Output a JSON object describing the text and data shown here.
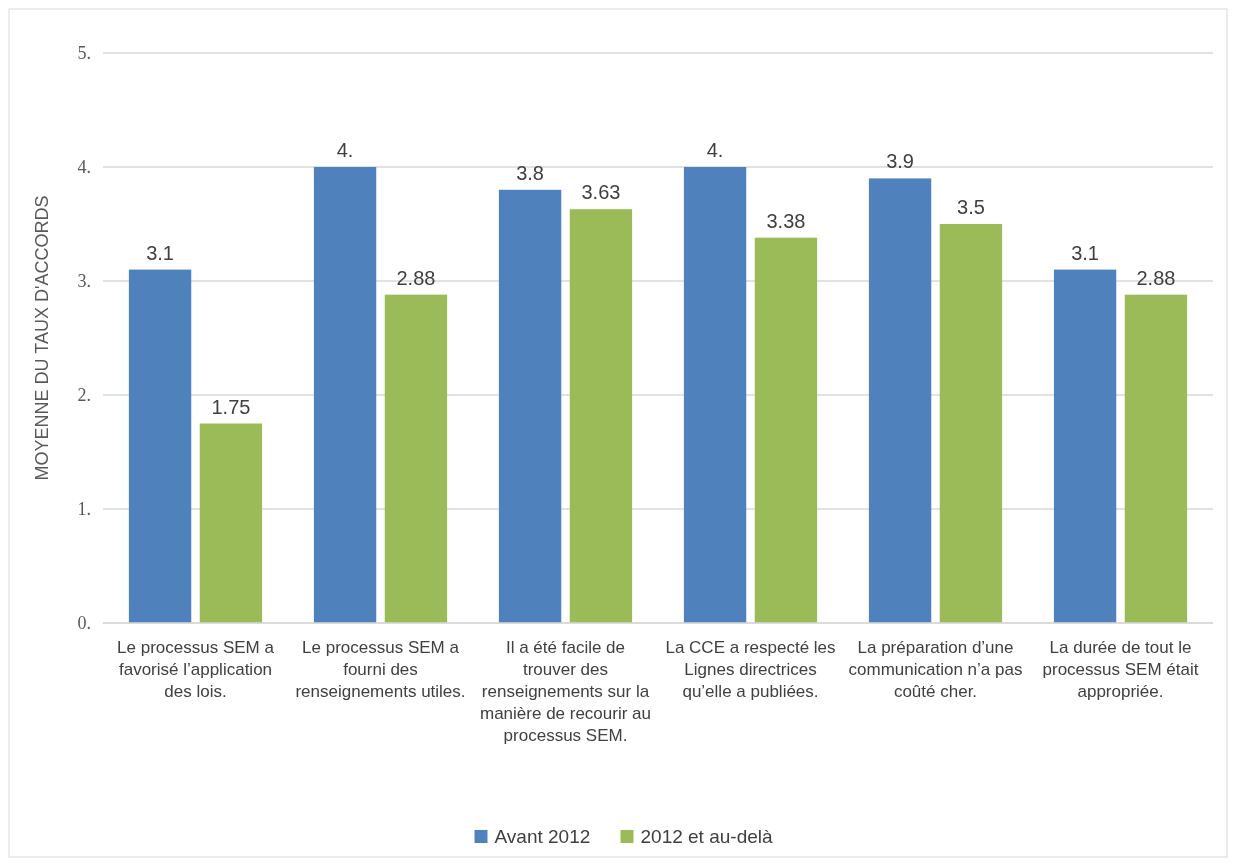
{
  "chart_data": {
    "type": "bar",
    "ylabel": "MOYENNE DU TAUX D'ACCORDS",
    "categories": [
      "Le processus SEM a favorisé l’application des lois.",
      "Le processus SEM a fourni des renseignements utiles.",
      "Il a été facile de trouver des renseignements sur la manière de recourir au processus SEM.",
      "La CCE a respecté les Lignes directrices qu’elle a publiées.",
      "La préparation d’une communication n’a pas coûté cher.",
      "La durée de tout le processus SEM était appropriée."
    ],
    "series": [
      {
        "name": "Avant 2012",
        "color": "#4f81bd",
        "values": [
          3.1,
          4,
          3.8,
          4,
          3.9,
          3.1
        ],
        "value_labels": [
          "3.1",
          "4.",
          "3.8",
          "4.",
          "3.9",
          "3.1"
        ]
      },
      {
        "name": "2012 et au-delà",
        "color": "#9bbb59",
        "values": [
          1.75,
          2.88,
          3.63,
          3.38,
          3.5,
          2.88
        ],
        "value_labels": [
          "1.75",
          "2.88",
          "3.63",
          "3.38",
          "3.5",
          "2.88"
        ]
      }
    ],
    "ylim": [
      0,
      5
    ],
    "yticks": [
      {
        "value": 0,
        "label": "0."
      },
      {
        "value": 1,
        "label": "1."
      },
      {
        "value": 2,
        "label": "2."
      },
      {
        "value": 3,
        "label": "3."
      },
      {
        "value": 4,
        "label": "4."
      },
      {
        "value": 5,
        "label": "5."
      }
    ],
    "grid": "y",
    "legend": "bottom"
  }
}
